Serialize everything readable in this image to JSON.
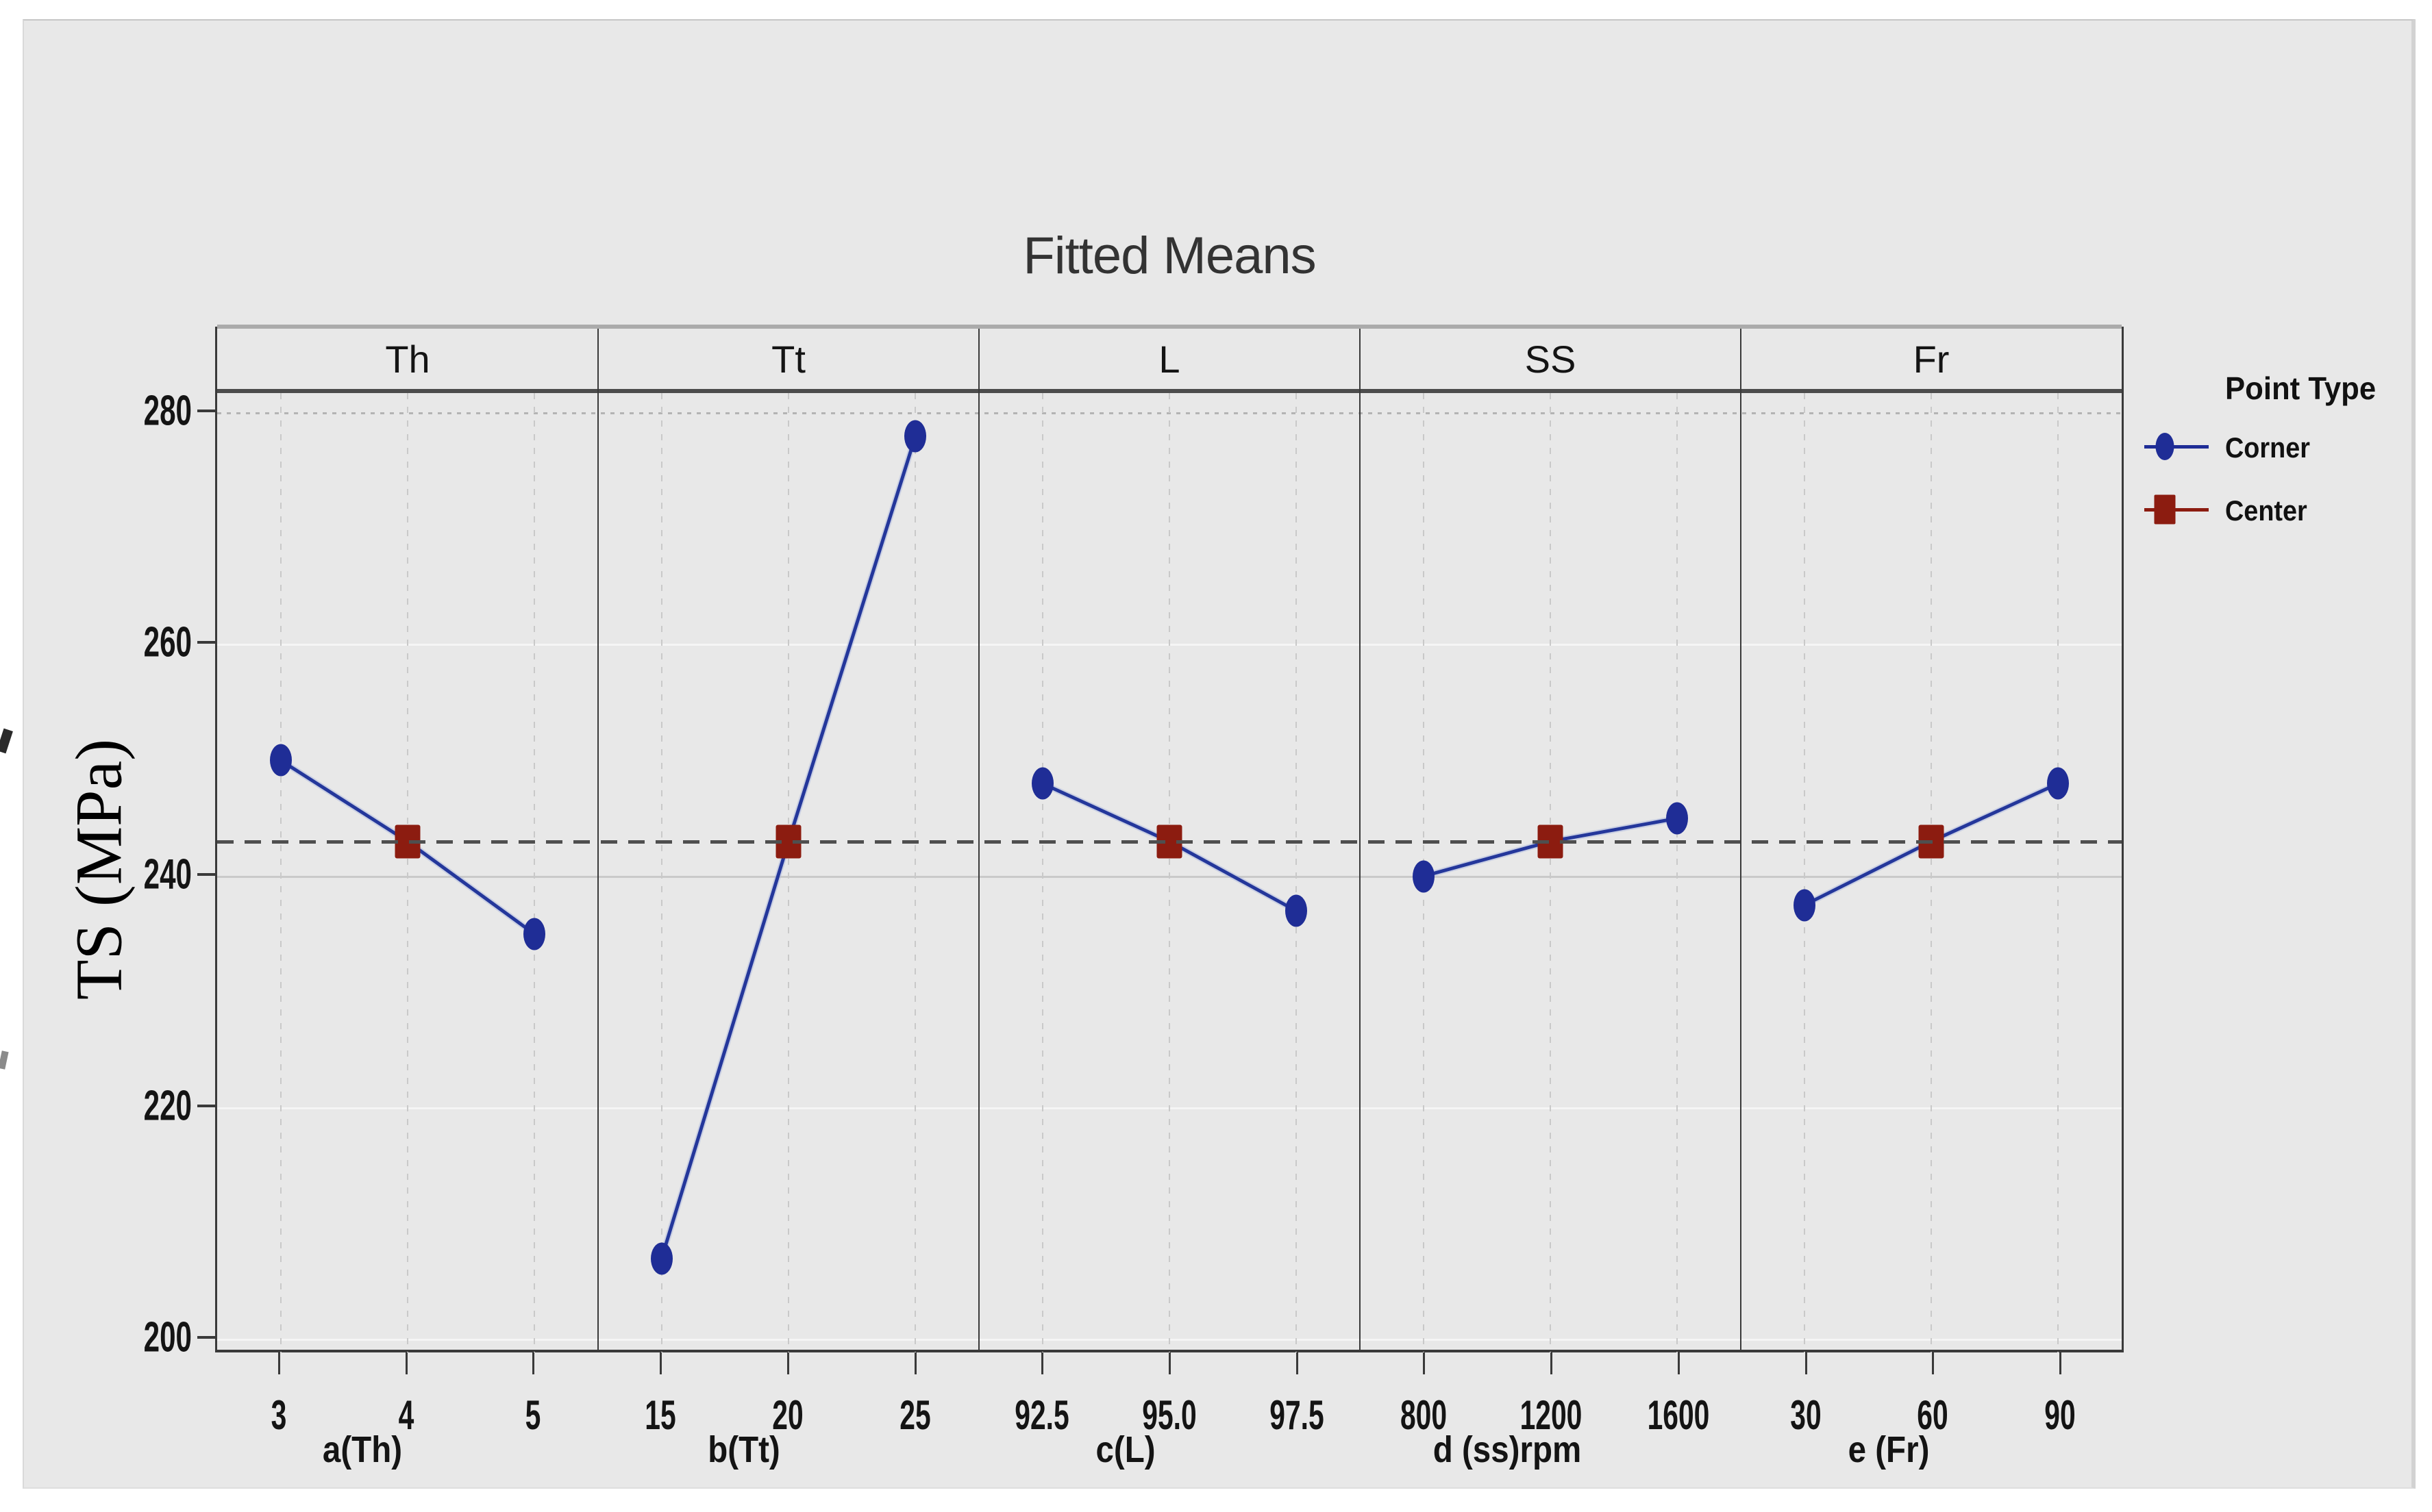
{
  "title": "Fitted Means",
  "y_axis": {
    "label": "TS (MPa)"
  },
  "chart_data": {
    "type": "line",
    "title": "Fitted Means",
    "ylabel": "TS (MPa)",
    "ylim": [
      198.9,
      281.7
    ],
    "yticks": [
      280,
      260,
      240,
      220,
      200
    ],
    "reference_line_y": 243,
    "grid": true,
    "legend_position": "right",
    "colors": {
      "corner": "#1f2d96",
      "corner_line": "#24379b",
      "corner_line_halo": "#a9b6dd",
      "center": "#8c1c10",
      "reference": "#4f4f4f"
    },
    "legend": {
      "title": "Point Type",
      "items": [
        {
          "label": "Corner",
          "marker": "diamond",
          "color": "#1f2d96"
        },
        {
          "label": "Center",
          "marker": "square",
          "color": "#8c1c10"
        }
      ]
    },
    "panels": [
      {
        "header": "Th",
        "xlabel": "a(Th)",
        "x": [
          "3",
          "4",
          "5"
        ],
        "values": [
          250,
          243,
          235
        ],
        "point_types": [
          "corner",
          "center",
          "corner"
        ]
      },
      {
        "header": "Tt",
        "xlabel": "b(Tt)",
        "x": [
          "15",
          "20",
          "25"
        ],
        "values": [
          207,
          243,
          278
        ],
        "point_types": [
          "corner",
          "center",
          "corner"
        ]
      },
      {
        "header": "L",
        "xlabel": "c(L)",
        "x": [
          "92.5",
          "95.0",
          "97.5"
        ],
        "values": [
          248,
          243,
          237
        ],
        "point_types": [
          "corner",
          "center",
          "corner"
        ]
      },
      {
        "header": "SS",
        "xlabel": "d (ss)rpm",
        "x": [
          "800",
          "1200",
          "1600"
        ],
        "values": [
          240,
          243,
          245
        ],
        "point_types": [
          "corner",
          "center",
          "corner"
        ]
      },
      {
        "header": "Fr",
        "xlabel": "e (Fr)",
        "x": [
          "30",
          "60",
          "90"
        ],
        "values": [
          237.5,
          243,
          248
        ],
        "point_types": [
          "corner",
          "center",
          "corner"
        ]
      }
    ]
  }
}
